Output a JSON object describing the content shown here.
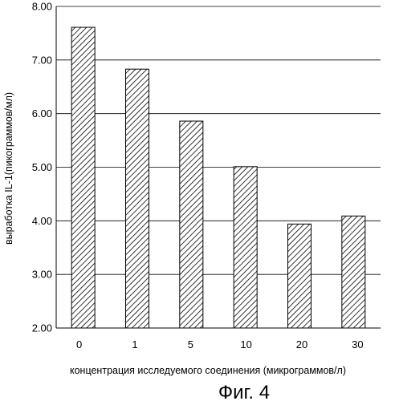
{
  "chart_data": {
    "type": "bar",
    "categories": [
      "0",
      "1",
      "5",
      "10",
      "20",
      "30"
    ],
    "values": [
      7.61,
      6.83,
      5.86,
      5.01,
      3.94,
      4.09
    ],
    "xlabel": "концентрация исследуемого соединения (микрограммов/л)",
    "ylabel": "выработка IL-1(пикограммов/мл)",
    "ylim": [
      2.0,
      8.0
    ],
    "yticks": [
      "2.00",
      "3.00",
      "4.00",
      "5.00",
      "6.00",
      "7.00",
      "8.00"
    ],
    "grid": true,
    "legend": "none",
    "bar_fill": "hatched",
    "colors": {
      "bar_hatch": "#000000",
      "bar_bg": "#ffffff",
      "gridline": "#000000"
    }
  },
  "caption": "Фиг. 4"
}
